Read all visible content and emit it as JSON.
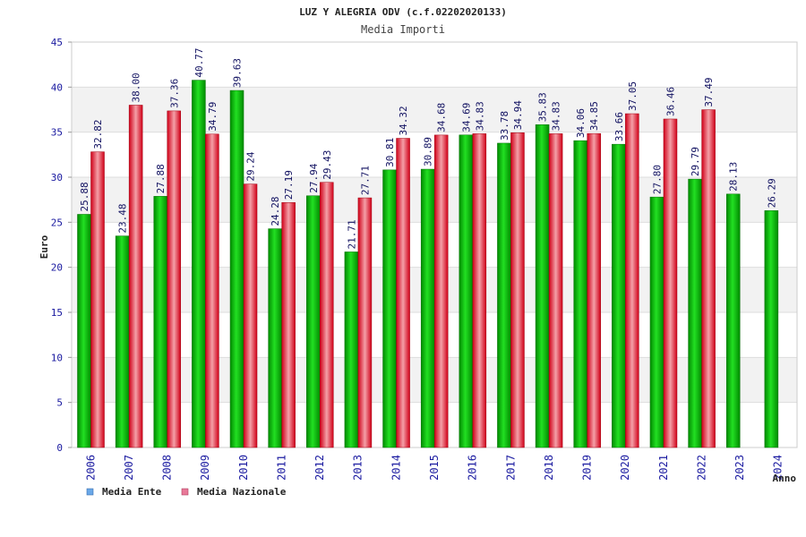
{
  "chart_data": {
    "type": "bar",
    "title": "LUZ Y ALEGRIA ODV (c.f.02202020133)",
    "subtitle": "Media Importi",
    "xlabel": "Anno",
    "ylabel": "Euro",
    "ylim": [
      0,
      45
    ],
    "yticks": [
      0,
      5,
      10,
      15,
      20,
      25,
      30,
      35,
      40,
      45
    ],
    "categories": [
      "2006",
      "2007",
      "2008",
      "2009",
      "2010",
      "2011",
      "2012",
      "2013",
      "2014",
      "2015",
      "2016",
      "2017",
      "2018",
      "2019",
      "2020",
      "2021",
      "2022",
      "2023",
      "2024"
    ],
    "series": [
      {
        "name": "Media Ente",
        "legend_color": "#6aa8e8",
        "bar_color": "#00b000",
        "values": [
          25.88,
          23.48,
          27.88,
          40.77,
          39.63,
          24.28,
          27.94,
          21.71,
          30.81,
          30.89,
          34.69,
          33.78,
          35.83,
          34.06,
          33.66,
          27.8,
          29.79,
          28.13,
          26.29
        ],
        "labels": [
          "25.88",
          "23.48",
          "27.88",
          "40.77",
          "39.63",
          "24.28",
          "27.94",
          "21.71",
          "30.81",
          "30.89",
          "34.69",
          "33.78",
          "35.83",
          "34.06",
          "33.66",
          "27.80",
          "29.79",
          "28.13",
          "26.29"
        ]
      },
      {
        "name": "Media Nazionale",
        "legend_color": "#e87898",
        "bar_color": "#e02030",
        "values": [
          32.82,
          38.0,
          37.36,
          34.79,
          29.24,
          27.19,
          29.43,
          27.71,
          34.32,
          34.68,
          34.83,
          34.94,
          34.83,
          34.85,
          37.05,
          36.46,
          37.49,
          null,
          null
        ],
        "labels": [
          "32.82",
          "38.00",
          "37.36",
          "34.79",
          "29.24",
          "27.19",
          "29.43",
          "27.71",
          "34.32",
          "34.68",
          "34.83",
          "34.94",
          "34.83",
          "34.85",
          "37.05",
          "36.46",
          "37.49",
          null,
          null
        ]
      }
    ],
    "legend_position": "bottom-left",
    "grid": true
  }
}
